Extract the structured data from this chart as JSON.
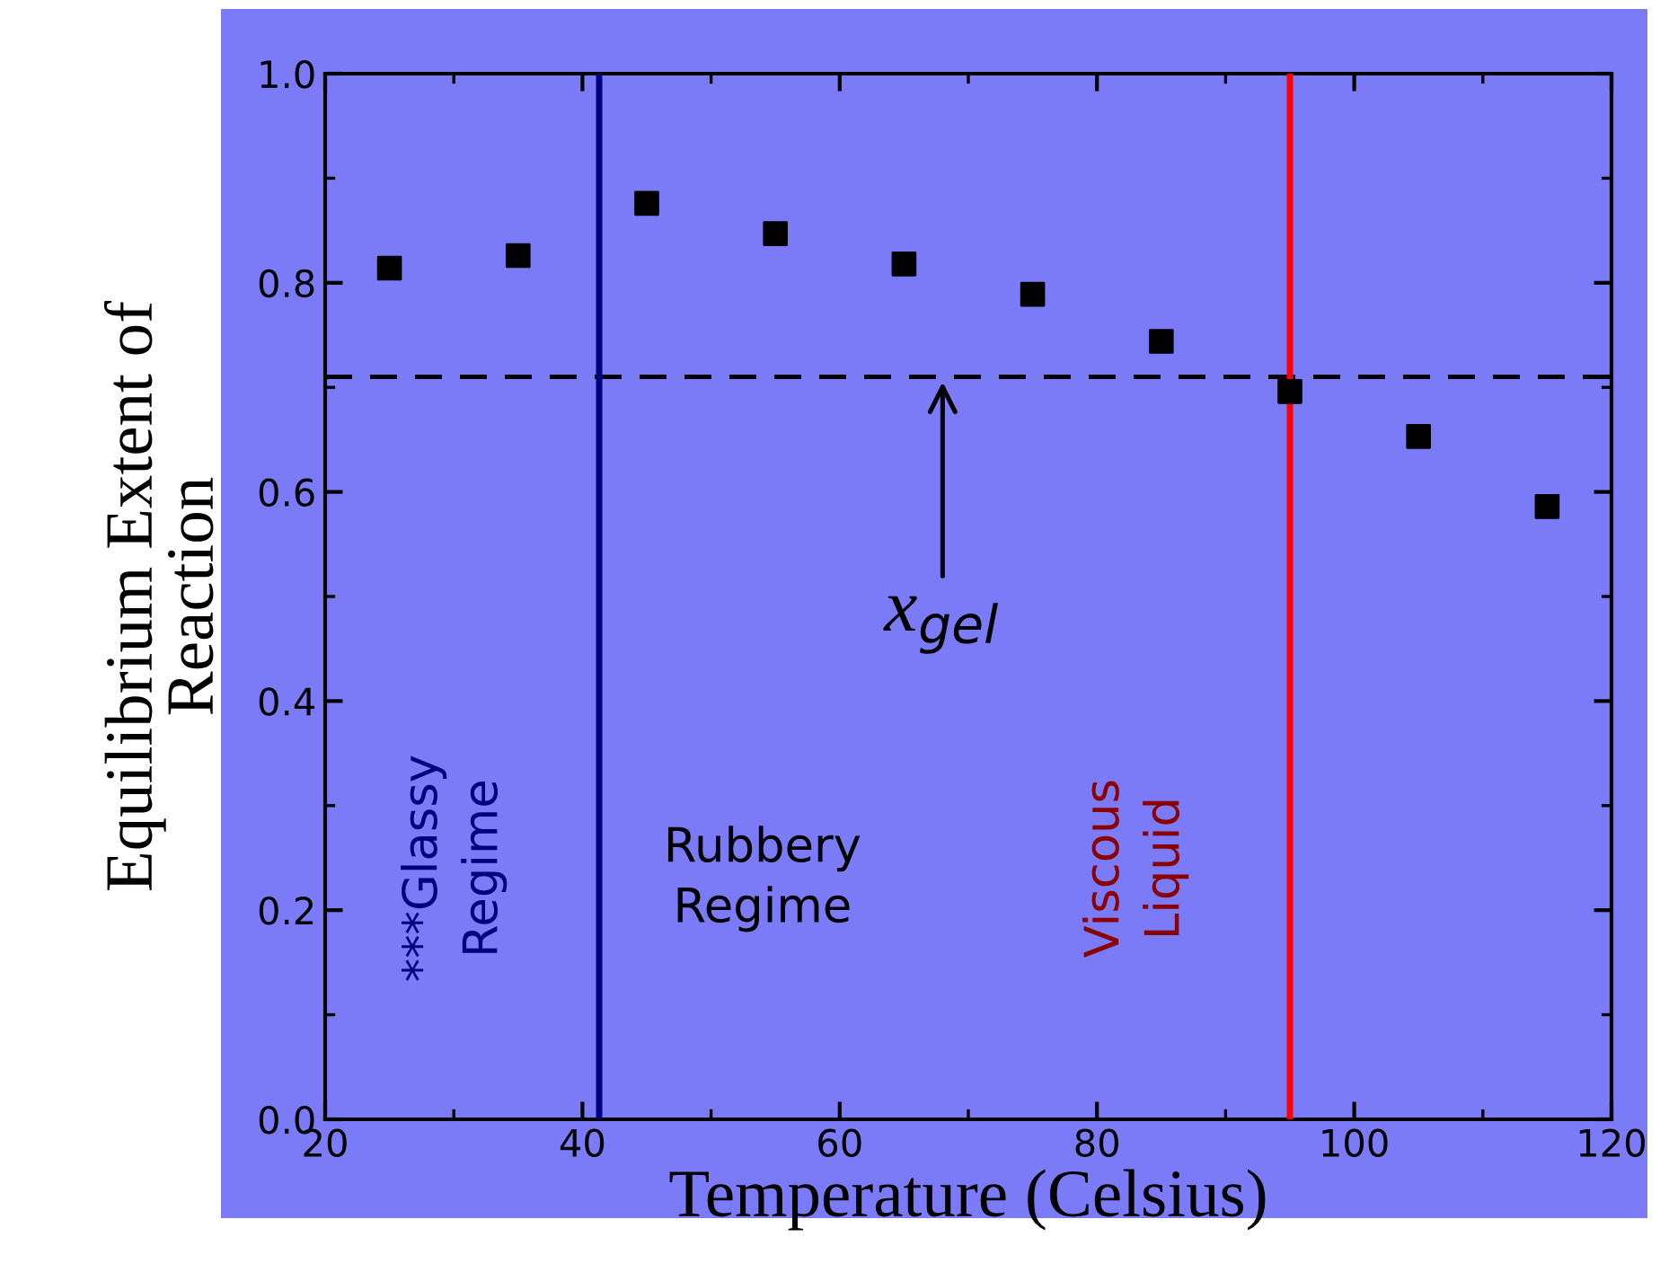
{
  "chart_data": {
    "type": "scatter",
    "xlabel": "Temperature (Celsius)",
    "ylabel": "Equilibrium Extent of\nReaction",
    "x": [
      25,
      35,
      45,
      55,
      65,
      75,
      85,
      95,
      105,
      115
    ],
    "series": [
      {
        "color": "#000000",
        "values": [
          0.814,
          0.826,
          0.876,
          0.847,
          0.818,
          0.789,
          0.744,
          0.696,
          0.653,
          0.586
        ]
      }
    ],
    "marker": "square",
    "xlim": [
      20,
      120
    ],
    "xticks": [
      20,
      40,
      60,
      80,
      100,
      120
    ],
    "ylim": [
      0,
      1.0
    ],
    "yticks": [
      {
        "value": 0,
        "label": "0.0"
      },
      0.2,
      0.4,
      0.6,
      0.8,
      {
        "value": 1,
        "label": "1.0"
      }
    ],
    "ref_lines": [
      {
        "axis": "y",
        "value": 0.71,
        "color": "#000000",
        "line_style": "dashed"
      },
      {
        "axis": "x",
        "value": 41.3,
        "color": "#000080",
        "line_style": "solid"
      },
      {
        "axis": "x",
        "value": 95,
        "color": "#ff0000",
        "line_style": "solid"
      }
    ],
    "annotations": [
      {
        "text": "x$_{gel}$",
        "x": 68,
        "y": 0.71
      },
      "***Glassy Regime",
      "Rubbery Regime",
      "Viscous Liquid"
    ],
    "grid": false,
    "legend": false
  }
}
